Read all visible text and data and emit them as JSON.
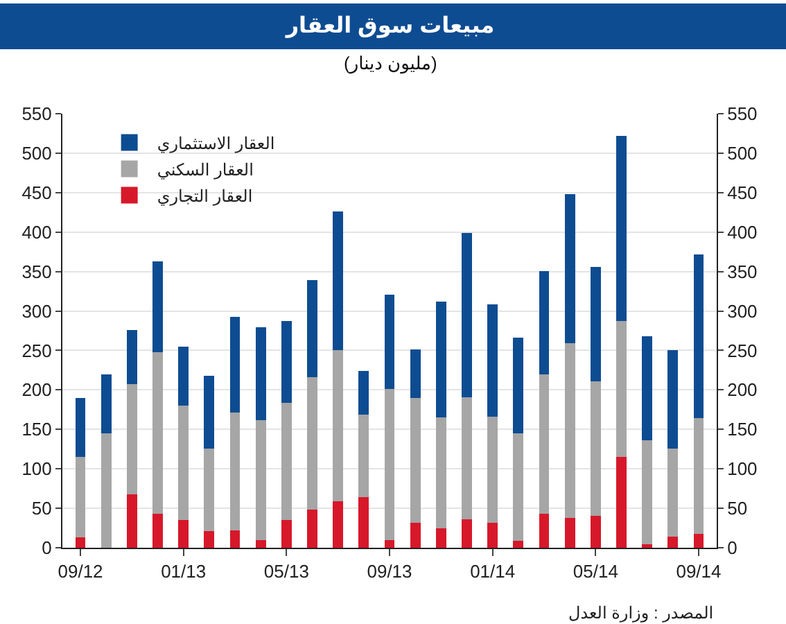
{
  "chart_data": {
    "type": "bar",
    "stacked": true,
    "title": "مبيعات سوق العقار",
    "subtitle": "(مليون دينار)",
    "categories": [
      "09/12",
      null,
      null,
      null,
      "01/13",
      null,
      null,
      null,
      "05/13",
      null,
      null,
      null,
      "09/13",
      null,
      null,
      null,
      "01/14",
      null,
      null,
      null,
      "05/14",
      null,
      null,
      null,
      "09/14"
    ],
    "series": [
      {
        "name": "العقار التجاري",
        "color": "#d7182a",
        "values": [
          13,
          0,
          68,
          43,
          35,
          21,
          22,
          10,
          35,
          48,
          59,
          64,
          10,
          32,
          25,
          36,
          32,
          9,
          43,
          38,
          40,
          115,
          4,
          14,
          18
        ]
      },
      {
        "name": "العقار السكني",
        "color": "#a6a6a6",
        "values": [
          102,
          145,
          139,
          205,
          145,
          105,
          149,
          152,
          149,
          168,
          191,
          105,
          191,
          158,
          140,
          155,
          134,
          136,
          177,
          221,
          171,
          172,
          132,
          112,
          146
        ]
      },
      {
        "name": "العقار الاستثماري",
        "color": "#0e4c92",
        "values": [
          75,
          75,
          69,
          115,
          75,
          92,
          122,
          117,
          103,
          123,
          176,
          55,
          120,
          61,
          147,
          208,
          142,
          121,
          131,
          189,
          145,
          235,
          132,
          124,
          208
        ]
      }
    ],
    "ylim": [
      0,
      550
    ],
    "yticks": [
      0,
      50,
      100,
      150,
      200,
      250,
      300,
      350,
      400,
      450,
      500,
      550
    ],
    "y2lim": [
      0,
      550
    ],
    "y2ticks": [
      0,
      50,
      100,
      150,
      200,
      250,
      300,
      350,
      400,
      450,
      500,
      550
    ],
    "grid": "y",
    "legend": "top left",
    "annotations": [
      "المصدر : وزارة العدل"
    ]
  }
}
